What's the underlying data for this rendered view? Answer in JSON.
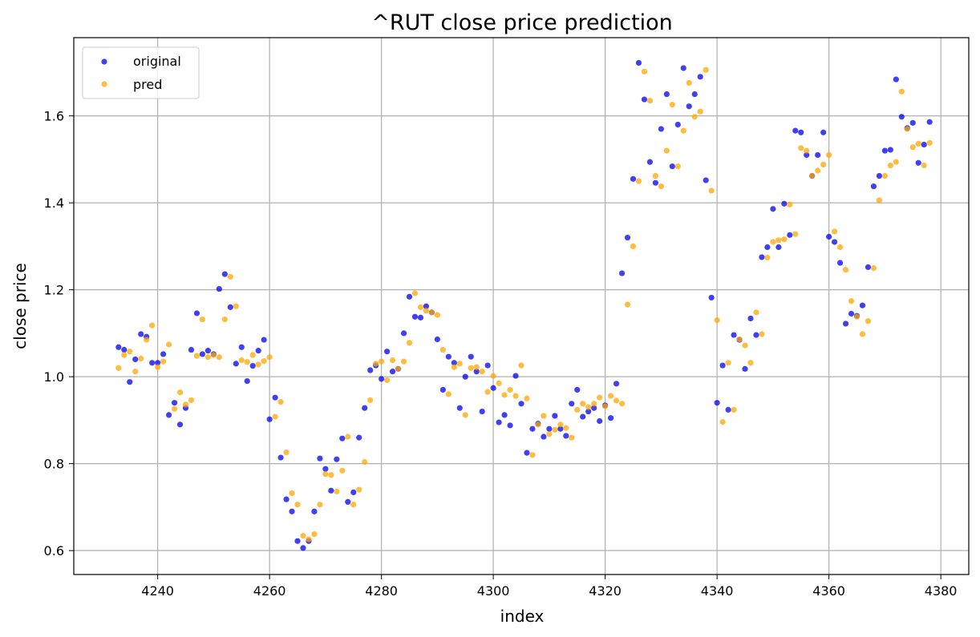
{
  "chart_data": {
    "type": "scatter",
    "title": "^RUT close price prediction",
    "xlabel": "index",
    "ylabel": "close price",
    "xlim": [
      4225,
      4385
    ],
    "ylim": [
      0.545,
      1.78
    ],
    "xticks": [
      4240,
      4260,
      4280,
      4300,
      4320,
      4340,
      4360,
      4380
    ],
    "yticks": [
      0.6,
      0.8,
      1.0,
      1.2,
      1.4,
      1.6
    ],
    "grid": true,
    "legend_position": "top-left",
    "x_start": 4233,
    "series": [
      {
        "name": "original",
        "color": "#0000ee",
        "values": [
          1.068,
          1.062,
          0.988,
          1.04,
          1.098,
          1.092,
          1.032,
          1.032,
          1.052,
          0.912,
          0.94,
          0.89,
          0.928,
          1.062,
          1.146,
          1.052,
          1.06,
          1.052,
          1.202,
          1.236,
          1.16,
          1.03,
          1.068,
          0.99,
          1.025,
          1.06,
          1.085,
          0.902,
          0.952,
          0.814,
          0.718,
          0.69,
          0.622,
          0.606,
          0.622,
          0.69,
          0.812,
          0.788,
          0.738,
          0.81,
          0.858,
          0.712,
          0.734,
          0.86,
          0.928,
          1.015,
          1.026,
          0.995,
          1.058,
          1.012,
          1.018,
          1.1,
          1.184,
          1.138,
          1.136,
          1.162,
          1.148,
          1.086,
          0.97,
          1.046,
          1.032,
          0.928,
          1.0,
          1.046,
          1.012,
          0.92,
          1.026,
          0.974,
          0.895,
          0.912,
          0.888,
          1.002,
          0.938,
          0.825,
          0.88,
          0.892,
          0.862,
          0.88,
          0.91,
          0.88,
          0.864,
          0.938,
          0.97,
          0.908,
          0.92,
          0.928,
          0.898,
          0.934,
          0.905,
          0.984,
          1.238,
          1.32,
          1.455,
          1.722,
          1.638,
          1.494,
          1.446,
          1.57,
          1.65,
          1.484,
          1.58,
          1.71,
          1.622,
          1.65,
          1.69,
          1.452,
          1.182,
          0.94,
          1.026,
          0.924,
          1.096,
          1.085,
          1.018,
          1.134,
          1.096,
          1.275,
          1.298,
          1.386,
          1.298,
          1.398,
          1.326,
          1.566,
          1.562,
          1.51,
          1.462,
          1.51,
          1.562,
          1.322,
          1.31,
          1.262,
          1.122,
          1.145,
          1.14,
          1.164,
          1.252,
          1.438,
          1.462,
          1.52,
          1.522,
          1.684,
          1.598,
          1.572,
          1.584,
          1.492,
          1.534,
          1.586
        ]
      },
      {
        "name": "pred",
        "color": "#ffa500",
        "values": [
          1.02,
          1.05,
          1.058,
          1.012,
          1.042,
          1.085,
          1.118,
          1.022,
          1.035,
          1.074,
          0.926,
          0.964,
          0.936,
          0.946,
          1.048,
          1.132,
          1.045,
          1.05,
          1.045,
          1.132,
          1.23,
          1.162,
          1.038,
          1.034,
          1.05,
          1.028,
          1.036,
          1.045,
          0.908,
          0.942,
          0.826,
          0.732,
          0.706,
          0.634,
          0.626,
          0.638,
          0.706,
          0.776,
          0.774,
          0.736,
          0.784,
          0.862,
          0.706,
          0.74,
          0.804,
          0.946,
          1.03,
          1.035,
          0.992,
          1.038,
          1.018,
          1.035,
          1.078,
          1.192,
          1.16,
          1.152,
          1.148,
          1.142,
          1.062,
          0.96,
          1.022,
          1.03,
          0.912,
          1.02,
          1.022,
          1.012,
          0.965,
          1.002,
          0.985,
          0.958,
          0.97,
          0.956,
          1.026,
          0.95,
          0.82,
          0.89,
          0.91,
          0.868,
          0.878,
          0.89,
          0.882,
          0.86,
          0.924,
          0.938,
          0.93,
          0.938,
          0.952,
          0.932,
          0.956,
          0.945,
          0.938,
          1.166,
          1.3,
          1.45,
          1.702,
          1.635,
          1.462,
          1.438,
          1.52,
          1.626,
          1.484,
          1.566,
          1.676,
          1.598,
          1.61,
          1.706,
          1.428,
          1.13,
          0.896,
          1.032,
          0.924,
          1.086,
          1.072,
          1.032,
          1.148,
          1.098,
          1.274,
          1.31,
          1.314,
          1.316,
          1.396,
          1.328,
          1.526,
          1.52,
          1.462,
          1.474,
          1.488,
          1.51,
          1.334,
          1.298,
          1.246,
          1.174,
          1.138,
          1.098,
          1.128,
          1.25,
          1.406,
          1.462,
          1.486,
          1.494,
          1.656,
          1.57,
          1.528,
          1.536,
          1.486,
          1.538
        ]
      }
    ]
  }
}
